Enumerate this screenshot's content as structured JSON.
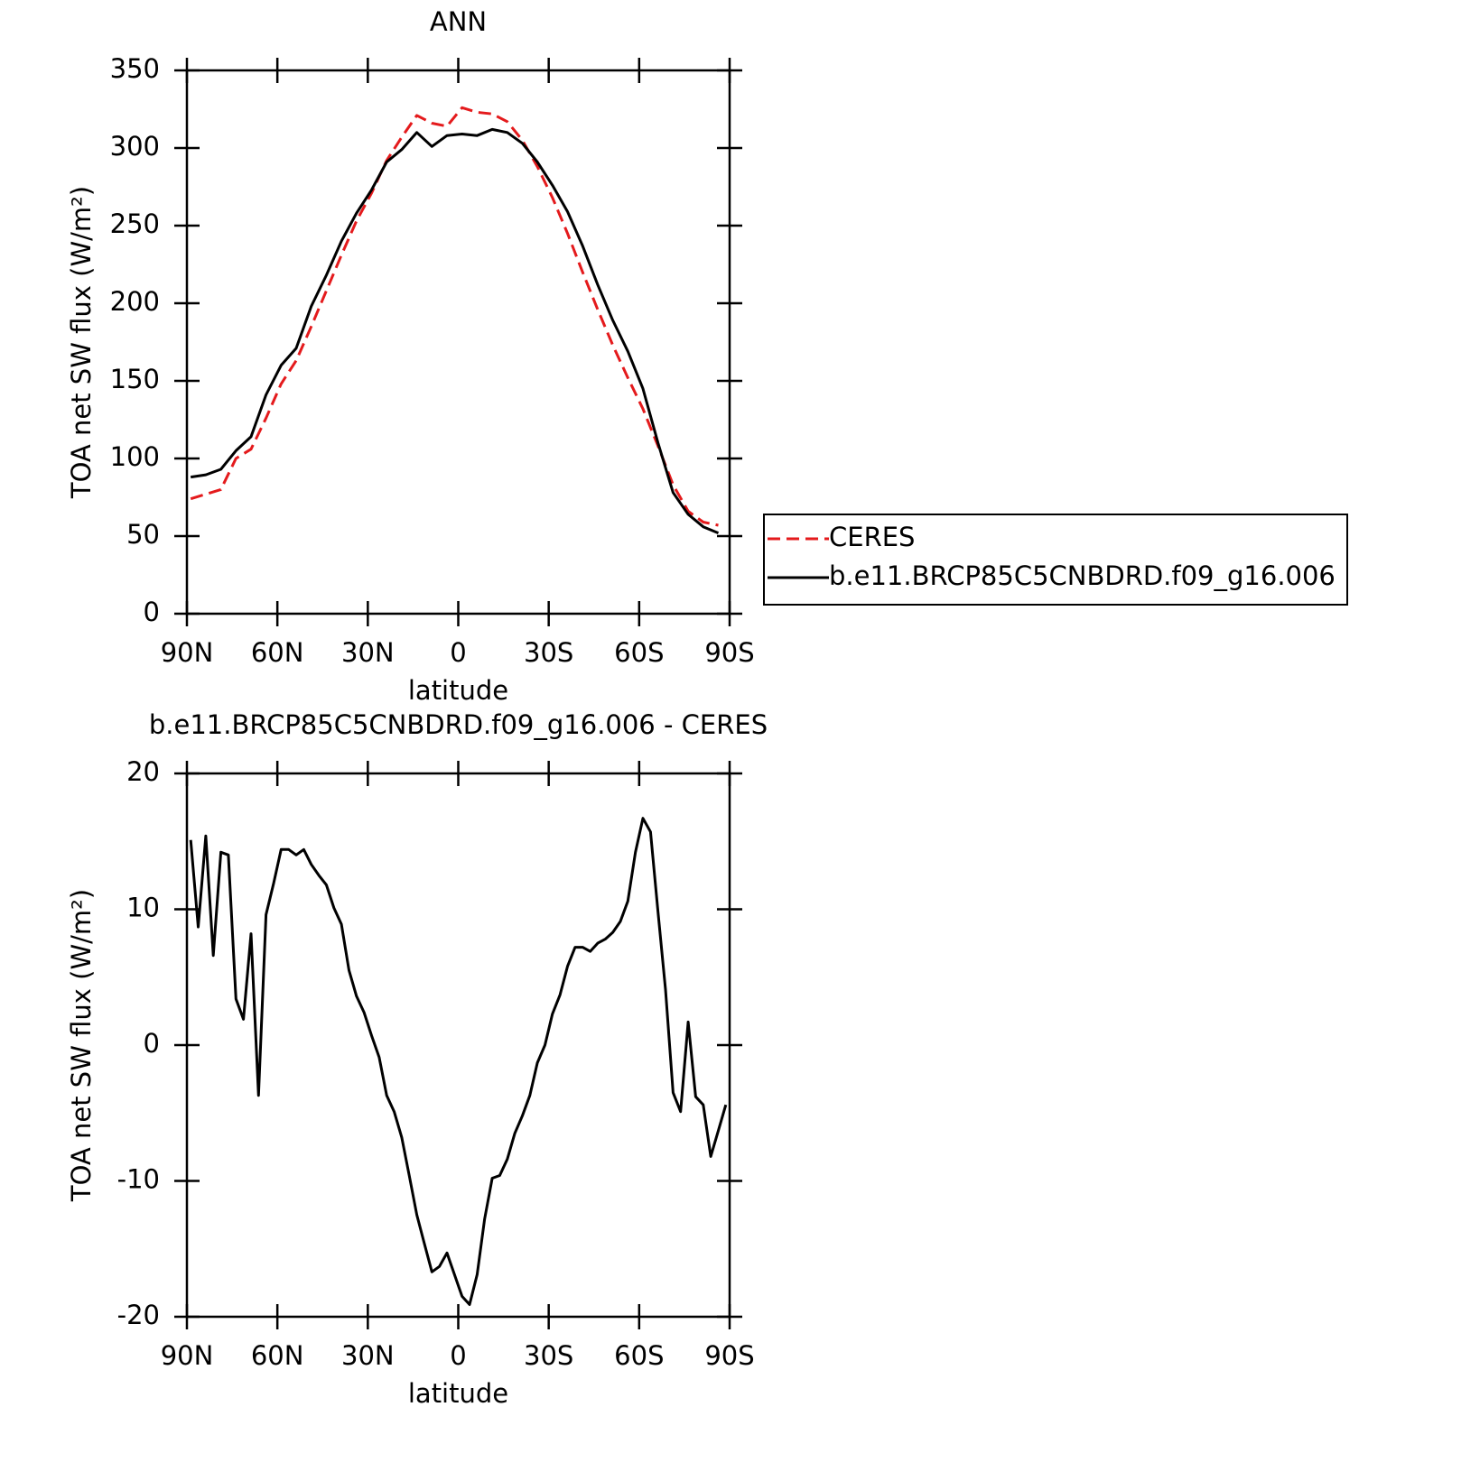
{
  "chart_data": [
    {
      "type": "line",
      "title": "ANN",
      "xlabel": "latitude",
      "ylabel": "TOA net SW flux (W/m²)",
      "x": [
        88.75,
        83.75,
        78.75,
        73.75,
        68.75,
        63.75,
        58.75,
        53.75,
        48.75,
        43.75,
        38.75,
        33.75,
        28.75,
        23.75,
        18.75,
        13.75,
        8.75,
        3.75,
        -1.25,
        -6.25,
        -11.25,
        -16.25,
        -21.25,
        -26.25,
        -31.25,
        -36.25,
        -41.25,
        -46.25,
        -51.25,
        -56.25,
        -61.25,
        -66.25,
        -71.25,
        -76.25,
        -81.25,
        -86.25
      ],
      "series": [
        {
          "name": "CERES",
          "color": "#e41a1c",
          "line_style": "dashed",
          "values": [
            74,
            77,
            80,
            100,
            106,
            126,
            148,
            163,
            185,
            208,
            231,
            253,
            271,
            292,
            307,
            321,
            316,
            314,
            326,
            323,
            322,
            317,
            305,
            288,
            268,
            245,
            220,
            196,
            173,
            152,
            132,
            108,
            83,
            66,
            59,
            57
          ]
        },
        {
          "name": "b.e11.BRCP85C5CNBDRD.f09_g16.006",
          "color": "#000000",
          "line_style": "solid",
          "values": [
            88,
            89.5,
            93,
            105,
            114,
            141,
            160,
            171,
            198,
            218,
            240,
            258,
            273,
            291,
            299,
            310,
            301,
            308,
            309,
            308,
            312,
            310,
            303,
            291,
            276,
            259,
            237,
            212,
            189,
            169,
            145,
            110,
            78,
            64,
            56,
            52
          ]
        }
      ],
      "xlim": [
        90,
        -90
      ],
      "xticks": [
        {
          "value": 90,
          "label": "90N"
        },
        {
          "value": 60,
          "label": "60N"
        },
        {
          "value": 30,
          "label": "30N"
        },
        0,
        {
          "value": -30,
          "label": "30S"
        },
        {
          "value": -60,
          "label": "60S"
        },
        {
          "value": -90,
          "label": "90S"
        }
      ],
      "ylim": [
        0,
        350
      ],
      "yticks": [
        0,
        50,
        100,
        150,
        200,
        250,
        300,
        350
      ],
      "legend": "right"
    },
    {
      "type": "line",
      "title": "b.e11.BRCP85C5CNBDRD.f09_g16.006 - CERES",
      "xlabel": "latitude",
      "ylabel": "TOA net SW flux (W/m²)",
      "x": [
        88.75,
        86.25,
        83.75,
        81.25,
        78.75,
        76.25,
        73.75,
        71.25,
        68.75,
        66.25,
        63.75,
        61.25,
        58.75,
        56.25,
        53.75,
        51.25,
        48.75,
        46.25,
        43.75,
        41.25,
        38.75,
        36.25,
        33.75,
        31.25,
        28.75,
        26.25,
        23.75,
        21.25,
        18.75,
        16.25,
        13.75,
        11.25,
        8.75,
        6.25,
        3.75,
        1.25,
        -1.25,
        -3.75,
        -6.25,
        -8.75,
        -11.25,
        -13.75,
        -16.25,
        -18.75,
        -21.25,
        -23.75,
        -26.25,
        -28.75,
        -31.25,
        -33.75,
        -36.25,
        -38.75,
        -41.25,
        -43.75,
        -46.25,
        -48.75,
        -51.25,
        -53.75,
        -56.25,
        -58.75,
        -61.25,
        -63.75,
        -66.25,
        -68.75,
        -71.25,
        -73.75,
        -76.25,
        -78.75,
        -81.25,
        -83.75,
        -86.25,
        -88.75
      ],
      "series": [
        {
          "color": "#000000",
          "line_style": "solid",
          "values": [
            15.1,
            8.7,
            15.4,
            6.6,
            14.2,
            14.0,
            3.4,
            1.9,
            8.2,
            -3.7,
            9.6,
            11.9,
            14.4,
            14.4,
            14.0,
            14.4,
            13.3,
            12.5,
            11.8,
            10.1,
            8.9,
            5.5,
            3.6,
            2.4,
            0.7,
            -0.9,
            -3.7,
            -4.9,
            -6.8,
            -9.6,
            -12.5,
            -14.6,
            -16.7,
            -16.3,
            -15.3,
            -16.9,
            -18.5,
            -19.1,
            -16.9,
            -12.8,
            -9.8,
            -9.6,
            -8.4,
            -6.5,
            -5.2,
            -3.7,
            -1.3,
            0.0,
            2.3,
            3.7,
            5.8,
            7.2,
            7.2,
            6.9,
            7.5,
            7.8,
            8.3,
            9.1,
            10.6,
            14.2,
            16.7,
            15.7,
            9.8,
            4.1,
            -3.5,
            -4.9,
            1.7,
            -3.8,
            -4.4,
            -8.2,
            -6.3,
            -4.4
          ]
        }
      ],
      "xlim": [
        90,
        -90
      ],
      "xticks": [
        {
          "value": 90,
          "label": "90N"
        },
        {
          "value": 60,
          "label": "60N"
        },
        {
          "value": 30,
          "label": "30N"
        },
        0,
        {
          "value": -30,
          "label": "30S"
        },
        {
          "value": -60,
          "label": "60S"
        },
        {
          "value": -90,
          "label": "90S"
        }
      ],
      "ylim": [
        -20,
        20
      ],
      "yticks": [
        -20,
        -10,
        0,
        10,
        20
      ]
    }
  ]
}
